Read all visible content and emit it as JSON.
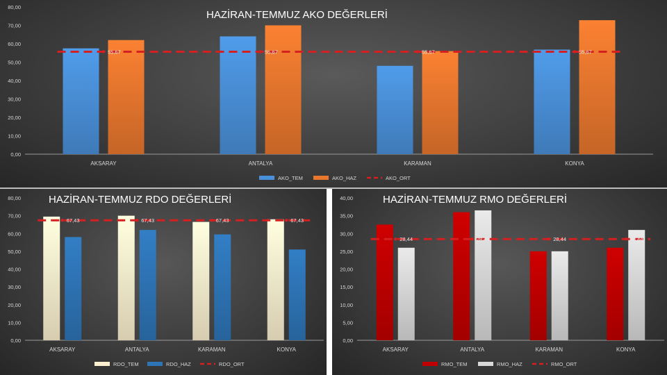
{
  "chart_data": [
    {
      "type": "bar",
      "title": "HAZİRAN-TEMMUZ AKO DEĞERLERİ",
      "categories": [
        "AKSARAY",
        "ANTALYA",
        "KARAMAN",
        "KONYA"
      ],
      "series": [
        {
          "name": "AKO_TEM",
          "type": "bar",
          "color": "#4a90d9",
          "values": [
            57.5,
            64.0,
            48.0,
            56.8
          ]
        },
        {
          "name": "AKO_HAZ",
          "type": "bar",
          "color": "#e8772e",
          "values": [
            62.0,
            70.0,
            56.0,
            72.8
          ]
        },
        {
          "name": "AKO_ORT",
          "type": "line",
          "color": "#d42020",
          "values": [
            55.67,
            55.67,
            55.67,
            55.67
          ]
        }
      ],
      "data_labels": [
        "55,67",
        "55,67",
        "55,67",
        "55,67"
      ],
      "ylim": [
        0,
        80
      ],
      "yticks": [
        "0,00",
        "10,00",
        "20,00",
        "30,00",
        "40,00",
        "50,00",
        "60,00",
        "70,00",
        "80,00"
      ],
      "legend_position": "bottom",
      "grid": false
    },
    {
      "type": "bar",
      "title": "HAZİRAN-TEMMUZ RDO DEĞERLERİ",
      "categories": [
        "AKSARAY",
        "ANTALYA",
        "KARAMAN",
        "KONYA"
      ],
      "series": [
        {
          "name": "RDO_TEM",
          "type": "bar",
          "color": "#fdf0cf",
          "values": [
            69.5,
            70.0,
            66.5,
            68.0
          ]
        },
        {
          "name": "RDO_HAZ",
          "type": "bar",
          "color": "#2e75b6",
          "values": [
            58.0,
            62.0,
            59.5,
            51.0
          ]
        },
        {
          "name": "RDO_ORT",
          "type": "line",
          "color": "#d42020",
          "values": [
            67.43,
            67.43,
            67.43,
            67.43
          ]
        }
      ],
      "data_labels": [
        "67,43",
        "67,43",
        "67,43",
        "67,43"
      ],
      "ylim": [
        0,
        80
      ],
      "yticks": [
        "0,00",
        "10,00",
        "20,00",
        "30,00",
        "40,00",
        "50,00",
        "60,00",
        "70,00",
        "80,00"
      ],
      "legend_position": "bottom",
      "grid": false
    },
    {
      "type": "bar",
      "title": "HAZİRAN-TEMMUZ RMO DEĞERLERİ",
      "categories": [
        "AKSARAY",
        "ANTALYA",
        "KARAMAN",
        "KONYA"
      ],
      "series": [
        {
          "name": "RMO_TEM",
          "type": "bar",
          "color": "#c00000",
          "values": [
            32.5,
            36.0,
            25.0,
            26.0
          ]
        },
        {
          "name": "RMO_HAZ",
          "type": "bar",
          "color": "#d9d9d9",
          "values": [
            26.0,
            36.5,
            25.0,
            31.0
          ]
        },
        {
          "name": "RMO_ORT",
          "type": "line",
          "color": "#d42020",
          "values": [
            28.44,
            28.44,
            28.44,
            28.44
          ]
        }
      ],
      "data_labels": [
        "28,44",
        "28,44",
        "28,44",
        "28,44"
      ],
      "ylim": [
        0,
        40
      ],
      "yticks": [
        "0,00",
        "5,00",
        "10,00",
        "15,00",
        "20,00",
        "25,00",
        "30,00",
        "35,00",
        "40,00"
      ],
      "legend_position": "bottom",
      "grid": false
    }
  ]
}
